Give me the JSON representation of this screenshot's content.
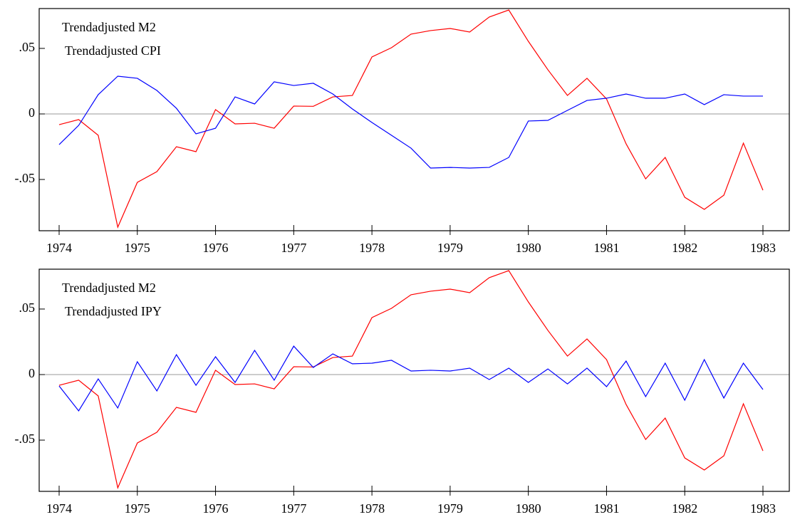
{
  "chart_data": [
    {
      "type": "line",
      "x": [
        1974,
        1974.25,
        1974.5,
        1974.75,
        1975,
        1975.25,
        1975.5,
        1975.75,
        1976,
        1976.25,
        1976.5,
        1976.75,
        1977,
        1977.25,
        1977.5,
        1977.75,
        1978,
        1978.25,
        1978.5,
        1978.75,
        1979,
        1979.25,
        1979.5,
        1979.75,
        1980,
        1980.25,
        1980.5,
        1980.75,
        1981,
        1981.25,
        1981.5,
        1981.75,
        1982,
        1982.25,
        1982.5,
        1982.75,
        1983
      ],
      "series": [
        {
          "name": "Trendadjusted  M2",
          "color": "#ff0000",
          "values": [
            -0.0082,
            -0.0043,
            -0.0163,
            -0.0864,
            -0.0522,
            -0.044,
            -0.025,
            -0.0288,
            0.0033,
            -0.0076,
            -0.0071,
            -0.0109,
            0.006,
            0.0058,
            0.013,
            0.0141,
            0.0435,
            0.0505,
            0.0609,
            0.0636,
            0.0652,
            0.0625,
            0.0739,
            0.0793,
            0.0554,
            0.0337,
            0.0141,
            0.0272,
            0.0114,
            -0.0228,
            -0.0495,
            -0.0332,
            -0.0636,
            -0.0728,
            -0.062,
            -0.0223,
            -0.0582
          ]
        },
        {
          "name": "Trendadjusted CPI",
          "color": "#0000ff",
          "values": [
            -0.0234,
            -0.0087,
            0.0147,
            0.0288,
            0.0272,
            0.0179,
            0.0043,
            -0.0152,
            -0.0109,
            0.013,
            0.0076,
            0.0245,
            0.0217,
            0.0234,
            0.0152,
            0.0038,
            -0.0065,
            -0.0163,
            -0.0261,
            -0.0413,
            -0.0408,
            -0.0413,
            -0.0408,
            -0.0332,
            -0.0054,
            -0.0049,
            0.0027,
            0.0103,
            0.012,
            0.0152,
            0.012,
            0.012,
            0.0152,
            0.0071,
            0.0147,
            0.0136,
            0.0136
          ]
        }
      ],
      "xlim": [
        1973.745,
        1983.337
      ],
      "xticks": [
        1974,
        1975,
        1976,
        1977,
        1978,
        1979,
        1980,
        1981,
        1982,
        1983
      ],
      "ylim": [
        -0.0891,
        0.0804
      ],
      "yticks": [
        {
          "value": 0.05,
          "label": ".05"
        },
        0,
        {
          "value": -0.05,
          "label": "-.05"
        }
      ],
      "zero_line": true,
      "legend": "upper left"
    },
    {
      "type": "line",
      "x": [
        1974,
        1974.25,
        1974.5,
        1974.75,
        1975,
        1975.25,
        1975.5,
        1975.75,
        1976,
        1976.25,
        1976.5,
        1976.75,
        1977,
        1977.25,
        1977.5,
        1977.75,
        1978,
        1978.25,
        1978.5,
        1978.75,
        1979,
        1979.25,
        1979.5,
        1979.75,
        1980,
        1980.25,
        1980.5,
        1980.75,
        1981,
        1981.25,
        1981.5,
        1981.75,
        1982,
        1982.25,
        1982.5,
        1982.75,
        1983
      ],
      "series": [
        {
          "name": "Trendadjusted M2",
          "color": "#ff0000",
          "values": [
            -0.0082,
            -0.0043,
            -0.0163,
            -0.0864,
            -0.0522,
            -0.044,
            -0.025,
            -0.0288,
            0.0033,
            -0.0076,
            -0.0071,
            -0.0109,
            0.006,
            0.0058,
            0.013,
            0.0141,
            0.0435,
            0.0505,
            0.0609,
            0.0636,
            0.0652,
            0.0625,
            0.0739,
            0.0793,
            0.0554,
            0.0337,
            0.0141,
            0.0272,
            0.0114,
            -0.0228,
            -0.0495,
            -0.0332,
            -0.0636,
            -0.0728,
            -0.062,
            -0.0223,
            -0.0582
          ]
        },
        {
          "name": "Trendadjusted IPY",
          "color": "#0000ff",
          "values": [
            -0.0087,
            -0.0277,
            -0.0033,
            -0.0255,
            0.0098,
            -0.0125,
            0.0152,
            -0.0082,
            0.0136,
            -0.006,
            0.0185,
            -0.0043,
            0.0217,
            0.0054,
            0.0158,
            0.0082,
            0.0087,
            0.0109,
            0.0027,
            0.0033,
            0.0027,
            0.0049,
            -0.0038,
            0.0049,
            -0.006,
            0.0043,
            -0.0071,
            0.0049,
            -0.0092,
            0.0103,
            -0.0168,
            0.0087,
            -0.0196,
            0.0114,
            -0.0179,
            0.0087,
            -0.0114
          ]
        }
      ],
      "xlim": [
        1973.745,
        1983.337
      ],
      "xticks": [
        1974,
        1975,
        1976,
        1977,
        1978,
        1979,
        1980,
        1981,
        1982,
        1983
      ],
      "ylim": [
        -0.0891,
        0.0804
      ],
      "yticks": [
        {
          "value": 0.05,
          "label": ".05"
        },
        0,
        {
          "value": -0.05,
          "label": "-.05"
        }
      ],
      "zero_line": true,
      "legend": "upper left"
    }
  ]
}
